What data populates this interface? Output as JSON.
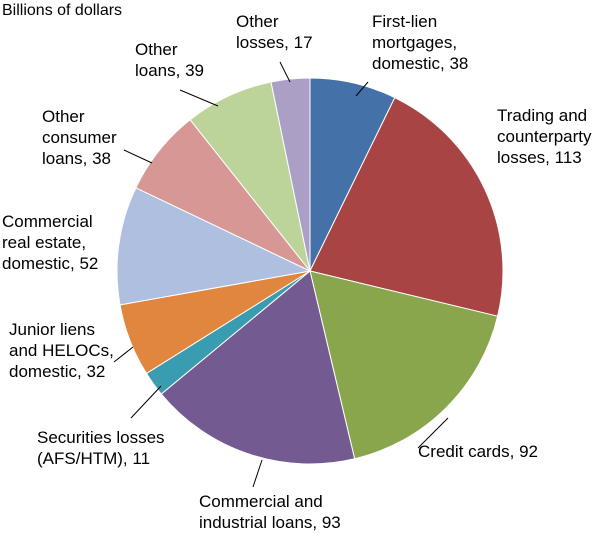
{
  "chart_data": {
    "type": "pie",
    "unit_label": "Billions of dollars",
    "title": "",
    "start_angle_deg": 0,
    "direction": "clockwise",
    "slices": [
      {
        "name": "First-lien mortgages, domestic",
        "value": 38,
        "color": "#4472a8",
        "label_lines": [
          "First-lien",
          "mortgages,",
          "domestic, 38"
        ]
      },
      {
        "name": "Trading and counterparty losses",
        "value": 113,
        "color": "#a94444",
        "label_lines": [
          "Trading and",
          "counterparty",
          "losses, 113"
        ]
      },
      {
        "name": "Credit cards",
        "value": 92,
        "color": "#8aa64c",
        "label_lines": [
          "Credit cards, 92"
        ]
      },
      {
        "name": "Commercial and industrial loans",
        "value": 93,
        "color": "#735a91",
        "label_lines": [
          "Commercial and",
          "industrial loans, 93"
        ]
      },
      {
        "name": "Securities losses (AFS/HTM)",
        "value": 11,
        "color": "#3a9cb0",
        "label_lines": [
          "Securities losses",
          "(AFS/HTM), 11"
        ]
      },
      {
        "name": "Junior liens and HELOCs, domestic",
        "value": 32,
        "color": "#e0863e",
        "label_lines": [
          "Junior liens",
          "and HELOCs,",
          "domestic, 32"
        ]
      },
      {
        "name": "Commercial real estate, domestic",
        "value": 52,
        "color": "#aebfdf",
        "label_lines": [
          "Commercial",
          "real estate,",
          "domestic, 52"
        ]
      },
      {
        "name": "Other consumer loans",
        "value": 38,
        "color": "#d79795",
        "label_lines": [
          "Other",
          "consumer",
          "loans, 38"
        ]
      },
      {
        "name": "Other loans",
        "value": 39,
        "color": "#bcd39a",
        "label_lines": [
          "Other",
          "loans, 39"
        ]
      },
      {
        "name": "Other losses",
        "value": 17,
        "color": "#ac9fc6",
        "label_lines": [
          "Other",
          "losses, 17"
        ]
      }
    ]
  }
}
